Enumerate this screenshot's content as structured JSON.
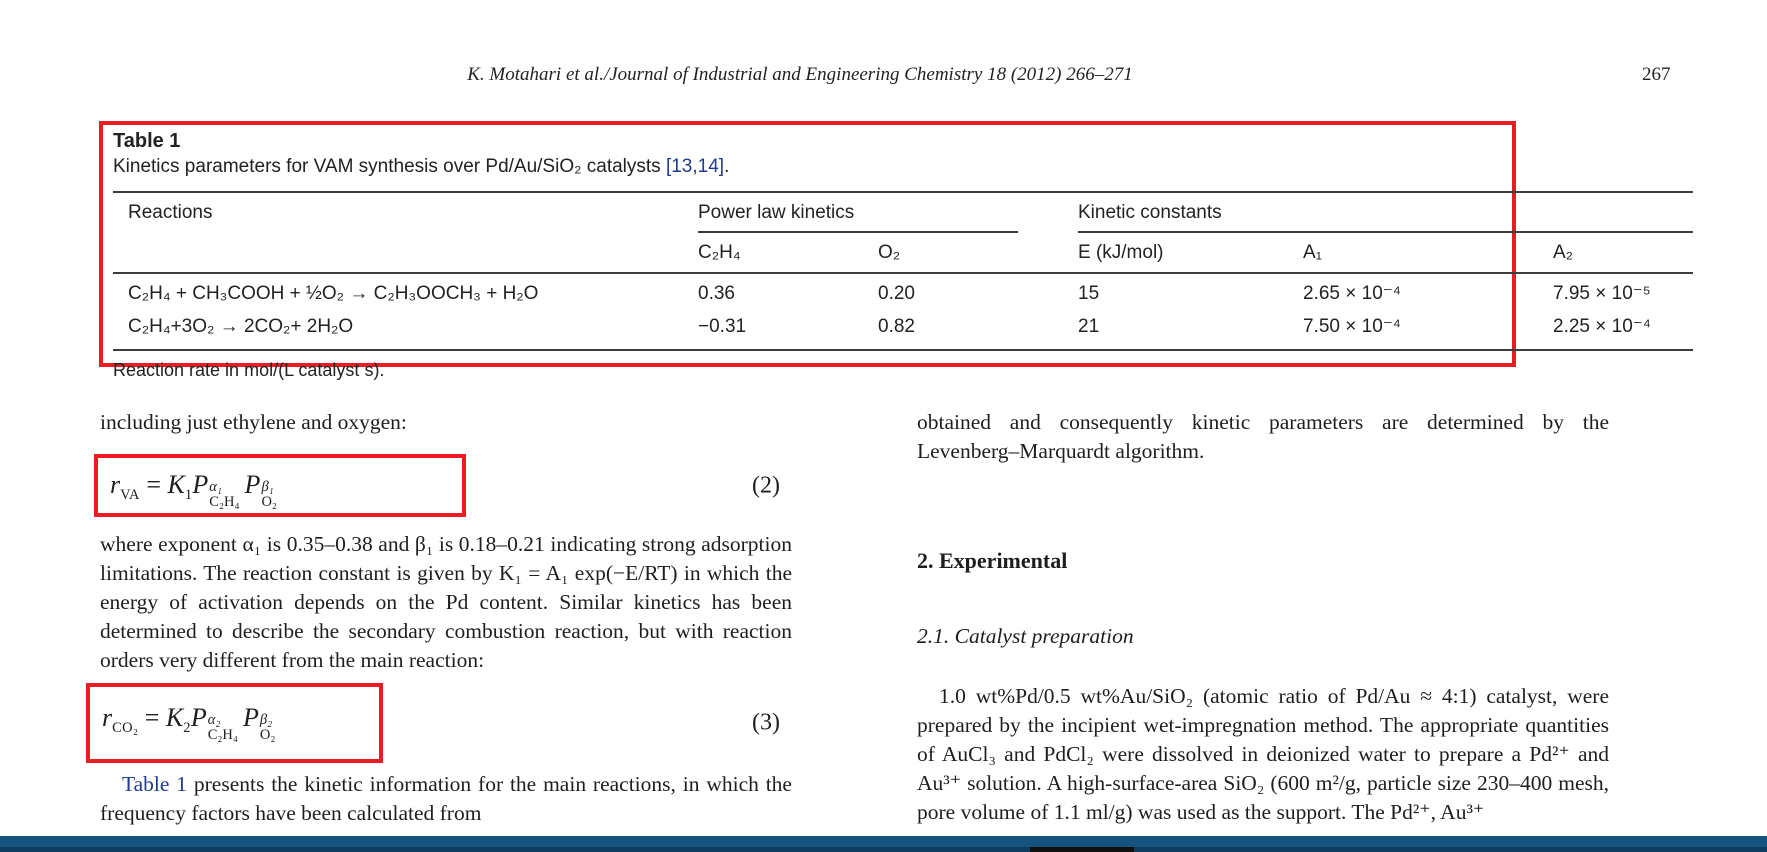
{
  "colors": {
    "highlight_red": "#ec1c24",
    "link_blue": "#1f3a8f",
    "bottom_bar_blue": "#17537f",
    "text": "#1e1e1e"
  },
  "header": {
    "running_head": "K. Motahari et al./Journal of Industrial and Engineering Chemistry 18 (2012) 266–271",
    "page_number": "267"
  },
  "table1": {
    "label": "Table 1",
    "caption_text": "Kinetics parameters for VAM synthesis over Pd/Au/SiO₂ catalysts ",
    "caption_ref": "[13,14]",
    "caption_period": ".",
    "headers": {
      "reactions": "Reactions",
      "group_power_law": "Power law kinetics",
      "group_kinetic_constants": "Kinetic constants",
      "c2h4": "C₂H₄",
      "o2": "O₂",
      "e": "E (kJ/mol)",
      "a1": "A₁",
      "a2": "A₂"
    },
    "rows": [
      {
        "reaction": "C₂H₄ + CH₃COOH + ½O₂ → C₂H₃OOCH₃ + H₂O",
        "c2h4": "0.36",
        "o2": "0.20",
        "e": "15",
        "a1": "2.65 × 10⁻⁴",
        "a2": "7.95 × 10⁻⁵"
      },
      {
        "reaction": "C₂H₄+3O₂ → 2CO₂+ 2H₂O",
        "c2h4": "−0.31",
        "o2": "0.82",
        "e": "21",
        "a1": "7.50 × 10⁻⁴",
        "a2": "2.25 × 10⁻⁴"
      }
    ],
    "footnote": "Reaction rate in mol/(L catalyst s)."
  },
  "left_column": {
    "intro_line": "including just ethylene and oxygen:",
    "equation2": {
      "r_base": "r",
      "r_sub": "VA",
      "equals": " = ",
      "k": "K",
      "k_sub": "1",
      "p1": "P",
      "p1_sup": "α₁",
      "p1_sub": "C₂H₄",
      "p2": "P",
      "p2_sup": "β₁",
      "p2_sub": "O₂",
      "number": "(2)"
    },
    "para1": "where exponent α₁ is 0.35–0.38 and β₁ is 0.18–0.21 indicating strong adsorption limitations. The reaction constant is given by K₁ = A₁ exp(−E/RT) in which the energy of activation depends on the Pd content. Similar kinetics has been determined to describe the secondary combustion reaction, but with reaction orders very different from the main reaction:",
    "equation3": {
      "r_base": "r",
      "r_sub": "CO₂",
      "equals": " = ",
      "k": "K",
      "k_sub": "2",
      "p1": "P",
      "p1_sup": "α₂",
      "p1_sub": "C₂H₄",
      "p2": "P",
      "p2_sup": "β₂",
      "p2_sub": "O₂",
      "number": "(3)"
    },
    "para2_ref": "Table 1",
    "para2_rest": " presents the kinetic information for the main reactions, in which the frequency factors have been calculated from"
  },
  "right_column": {
    "para0": "obtained and consequently kinetic parameters are determined by the Levenberg–Marquardt algorithm.",
    "section_heading": "2. Experimental",
    "subsection_heading": "2.1. Catalyst preparation",
    "para1": "1.0 wt%Pd/0.5 wt%Au/SiO₂ (atomic ratio of Pd/Au ≈ 4:1) catalyst, were prepared by the incipient wet-impregnation method. The appropriate quantities of AuCl₃ and PdCl₂ were dissolved in deionized water to prepare a Pd²⁺ and Au³⁺ solution. A high-surface-area SiO₂ (600 m²/g, particle size 230–400 mesh, pore volume of 1.1 ml/g) was used as the support. The Pd²⁺, Au³⁺"
  }
}
